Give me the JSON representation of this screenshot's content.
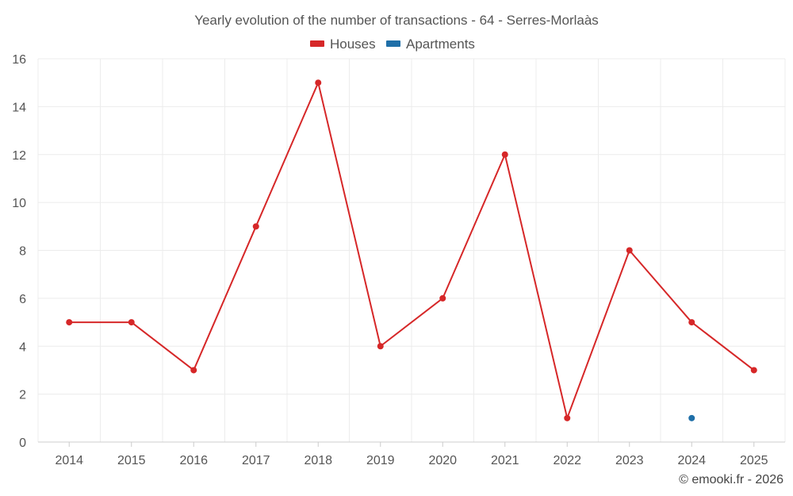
{
  "chart_data": {
    "type": "line",
    "title": "Yearly evolution of the number of transactions - 64 - Serres-Morlaàs",
    "categories": [
      "2014",
      "2015",
      "2016",
      "2017",
      "2018",
      "2019",
      "2020",
      "2021",
      "2022",
      "2023",
      "2024",
      "2025"
    ],
    "series": [
      {
        "name": "Houses",
        "color": "#d62728",
        "values": [
          5,
          5,
          3,
          9,
          15,
          4,
          6,
          12,
          1,
          8,
          5,
          3
        ]
      },
      {
        "name": "Apartments",
        "color": "#1f6fa8",
        "values": [
          null,
          null,
          null,
          null,
          null,
          null,
          null,
          null,
          null,
          null,
          1,
          null
        ]
      }
    ],
    "ylim": [
      0,
      16
    ],
    "yticks": [
      0,
      2,
      4,
      6,
      8,
      10,
      12,
      14,
      16
    ],
    "grid": true,
    "legend_position": "top-center"
  },
  "credit": "© emooki.fr - 2026"
}
